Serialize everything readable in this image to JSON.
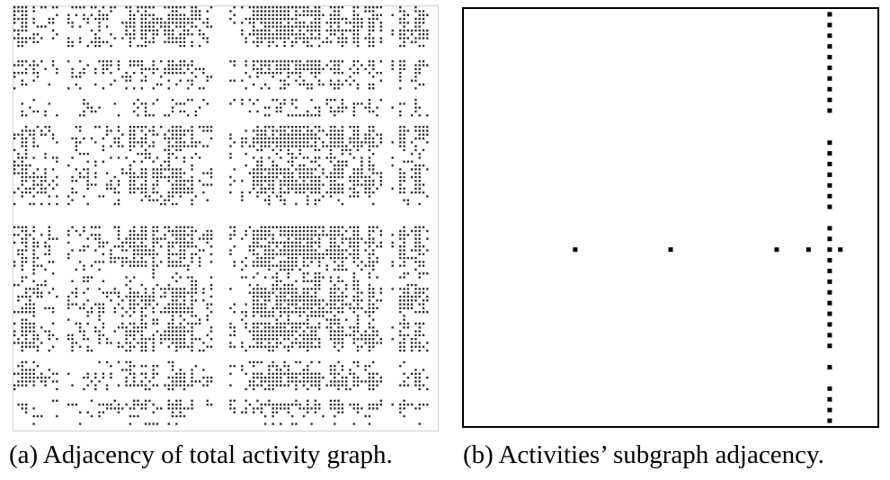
{
  "figure": {
    "panel_a": {
      "caption": "(a)  Adjacency of total activity graph.",
      "matrix": {
        "n": 110,
        "density": 0.16,
        "dense_rows": [
          0,
          1,
          2,
          3,
          4,
          5,
          6,
          7,
          8,
          9,
          14,
          15,
          16,
          17,
          31,
          32,
          33,
          34,
          35,
          36,
          42,
          43,
          44,
          45,
          46,
          47,
          48,
          57,
          58,
          59,
          60,
          61,
          62,
          63,
          64,
          65,
          66,
          67,
          73,
          74,
          75,
          76,
          77,
          78,
          79,
          82,
          83,
          84,
          85,
          86,
          87,
          88,
          95,
          96,
          97,
          98,
          103,
          104
        ],
        "dense_cols": [
          2,
          3,
          5,
          30,
          31,
          33,
          34,
          36,
          40,
          41,
          42,
          43,
          44,
          46,
          62,
          63,
          64,
          65,
          66,
          67,
          68,
          69,
          70,
          71,
          72,
          73,
          74,
          75,
          76,
          77,
          78,
          79,
          82,
          83,
          84,
          85,
          88,
          89,
          92,
          93,
          100,
          101,
          104,
          105
        ],
        "empty_rows": [
          11,
          12,
          13,
          22,
          23,
          29,
          30,
          52,
          53,
          54,
          55,
          56,
          90,
          91,
          100,
          101,
          107,
          109
        ],
        "empty_cols": [
          12,
          13,
          52,
          53,
          54,
          55,
          58,
          96,
          97,
          99,
          108,
          109
        ],
        "color": "#2a2a2a",
        "seed": 20231
      }
    },
    "panel_b": {
      "caption": "(b)  Activities’ subgraph adjacency.",
      "matrix": {
        "n": 39,
        "color": "#000000",
        "nonzeros": [
          [
            0,
            34
          ],
          [
            1,
            34
          ],
          [
            2,
            34
          ],
          [
            3,
            34
          ],
          [
            4,
            34
          ],
          [
            5,
            34
          ],
          [
            6,
            34
          ],
          [
            7,
            34
          ],
          [
            8,
            34
          ],
          [
            9,
            34
          ],
          [
            12,
            34
          ],
          [
            13,
            34
          ],
          [
            14,
            34
          ],
          [
            15,
            34
          ],
          [
            16,
            34
          ],
          [
            17,
            34
          ],
          [
            18,
            34
          ],
          [
            20,
            34
          ],
          [
            21,
            34
          ],
          [
            22,
            34
          ],
          [
            22,
            10
          ],
          [
            22,
            19
          ],
          [
            22,
            29
          ],
          [
            22,
            32
          ],
          [
            22,
            35
          ],
          [
            23,
            34
          ],
          [
            24,
            34
          ],
          [
            25,
            34
          ],
          [
            26,
            34
          ],
          [
            27,
            34
          ],
          [
            28,
            34
          ],
          [
            29,
            34
          ],
          [
            30,
            34
          ],
          [
            31,
            34
          ],
          [
            33,
            34
          ],
          [
            35,
            34
          ],
          [
            36,
            34
          ],
          [
            37,
            34
          ],
          [
            38,
            34
          ]
        ]
      }
    }
  }
}
